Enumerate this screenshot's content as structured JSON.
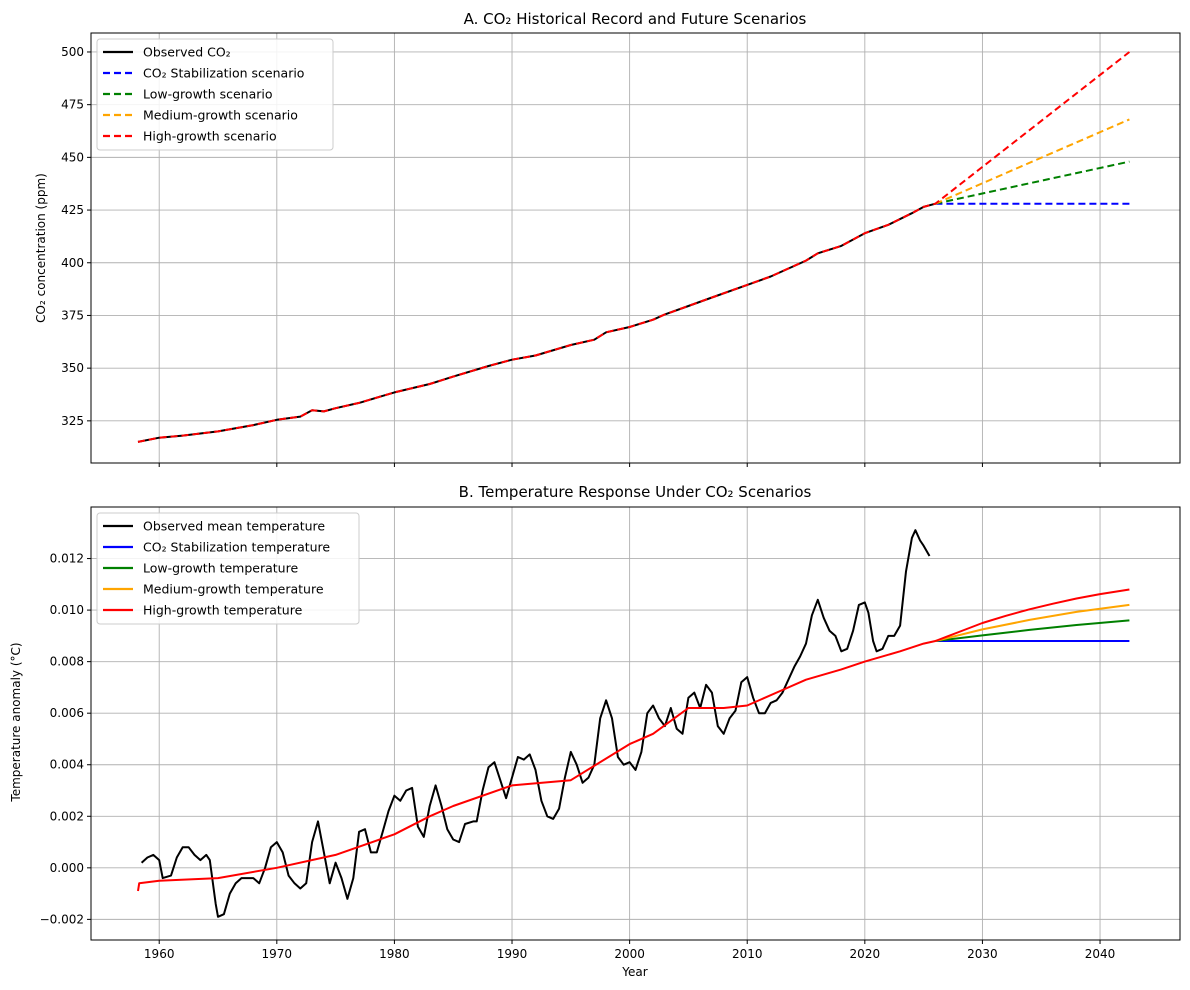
{
  "chart_data": [
    {
      "type": "line",
      "title": "A. CO₂ Historical Record and Future Scenarios",
      "xlabel": "",
      "ylabel": "CO₂ concentration (ppm)",
      "xlim": [
        1954.2,
        2046.8
      ],
      "ylim": [
        305,
        509
      ],
      "xticks": [
        1960,
        1970,
        1980,
        1990,
        2000,
        2010,
        2020,
        2030,
        2040
      ],
      "xtick_labels_visible": false,
      "yticks": [
        325,
        350,
        375,
        400,
        425,
        450,
        475,
        500
      ],
      "grid": true,
      "legend_position": "top-left",
      "series": [
        {
          "name": "Observed CO₂",
          "color": "#000000",
          "style": "solid",
          "x": [
            1958.2,
            1960,
            1962,
            1965,
            1968,
            1970,
            1972,
            1973,
            1974,
            1975,
            1977,
            1980,
            1983,
            1985,
            1988,
            1990,
            1992,
            1995,
            1997,
            1998,
            2000,
            2002,
            2003,
            2005,
            2007,
            2010,
            2012,
            2015,
            2016,
            2018,
            2020,
            2022,
            2024,
            2025,
            2026
          ],
          "y": [
            315,
            317,
            318,
            320,
            323,
            325.5,
            327,
            330,
            329.5,
            331,
            333.5,
            338.5,
            342.5,
            346,
            351,
            354,
            356,
            361,
            363.5,
            367,
            369.5,
            373,
            375.5,
            379.5,
            383.5,
            389.5,
            393.5,
            401,
            404.5,
            408,
            414,
            418,
            423.5,
            426.5,
            428
          ]
        },
        {
          "name": "CO₂ Stabilization scenario",
          "color": "#0000ff",
          "style": "dashed",
          "x": [
            2026,
            2042.5
          ],
          "y": [
            428,
            428
          ]
        },
        {
          "name": "Low-growth scenario",
          "color": "#008000",
          "style": "dashed",
          "x": [
            2026,
            2042.5
          ],
          "y": [
            428,
            448
          ]
        },
        {
          "name": "Medium-growth scenario",
          "color": "#ffa500",
          "style": "dashed",
          "x": [
            2026,
            2042.5
          ],
          "y": [
            428,
            468
          ]
        },
        {
          "name": "High-growth scenario",
          "color": "#ff0000",
          "style": "dashed",
          "x": [
            1958.2,
            1960,
            1962,
            1965,
            1968,
            1970,
            1972,
            1973,
            1974,
            1975,
            1977,
            1980,
            1983,
            1985,
            1988,
            1990,
            1992,
            1995,
            1997,
            1998,
            2000,
            2002,
            2003,
            2005,
            2007,
            2010,
            2012,
            2015,
            2016,
            2018,
            2020,
            2022,
            2024,
            2025,
            2026,
            2042.5
          ],
          "y": [
            315,
            317,
            318,
            320,
            323,
            325.5,
            327,
            330,
            329.5,
            331,
            333.5,
            338.5,
            342.5,
            346,
            351,
            354,
            356,
            361,
            363.5,
            367,
            369.5,
            373,
            375.5,
            379.5,
            383.5,
            389.5,
            393.5,
            401,
            404.5,
            408,
            414,
            418,
            423.5,
            426.5,
            428,
            500
          ]
        }
      ]
    },
    {
      "type": "line",
      "title": "B. Temperature Response Under CO₂ Scenarios",
      "xlabel": "Year",
      "ylabel": "Temperature anomaly (°C)",
      "xlim": [
        1954.2,
        2046.8
      ],
      "ylim": [
        -0.0028,
        0.014
      ],
      "xticks": [
        1960,
        1970,
        1980,
        1990,
        2000,
        2010,
        2020,
        2030,
        2040
      ],
      "yticks": [
        -0.002,
        0.0,
        0.002,
        0.004,
        0.006,
        0.008,
        0.01,
        0.012
      ],
      "ytick_labels": [
        "−0.002",
        "0.000",
        "0.002",
        "0.004",
        "0.006",
        "0.008",
        "0.010",
        "0.012"
      ],
      "grid": true,
      "legend_position": "top-left",
      "series": [
        {
          "name": "Observed mean temperature",
          "color": "#000000",
          "style": "solid",
          "x": [
            1958.5,
            1959,
            1959.5,
            1960,
            1960.3,
            1961,
            1961.5,
            1962,
            1962.5,
            1963,
            1963.5,
            1964,
            1964.3,
            1964.8,
            1965,
            1965.5,
            1966,
            1966.5,
            1967,
            1968,
            1968.5,
            1969,
            1969.5,
            1970,
            1970.5,
            1971,
            1971.5,
            1972,
            1972.5,
            1973,
            1973.5,
            1974,
            1974.5,
            1975,
            1975.5,
            1976,
            1976.5,
            1977,
            1977.5,
            1978,
            1978.5,
            1979,
            1979.5,
            1980,
            1980.5,
            1981,
            1981.5,
            1982,
            1982.5,
            1983,
            1983.5,
            1984,
            1984.5,
            1985,
            1985.5,
            1986,
            1986.7,
            1987,
            1987.5,
            1988,
            1988.5,
            1989,
            1989.5,
            1990,
            1990.5,
            1991,
            1991.5,
            1992,
            1992.5,
            1993,
            1993.5,
            1994,
            1994.5,
            1995,
            1995.5,
            1996,
            1996.5,
            1997,
            1997.5,
            1998,
            1998.5,
            1999,
            1999.5,
            2000,
            2000.5,
            2001,
            2001.5,
            2002,
            2002.5,
            2003,
            2003.5,
            2004,
            2004.5,
            2005,
            2005.5,
            2006,
            2006.5,
            2007,
            2007.5,
            2008,
            2008.5,
            2009,
            2009.5,
            2010,
            2010.5,
            2011,
            2011.5,
            2012,
            2012.5,
            2013,
            2013.5,
            2014,
            2014.5,
            2015,
            2015.5,
            2016,
            2016.5,
            2017,
            2017.5,
            2018,
            2018.5,
            2019,
            2019.5,
            2020,
            2020.3,
            2020.7,
            2021,
            2021.5,
            2022,
            2022.5,
            2023,
            2023.5,
            2024,
            2024.3,
            2024.7,
            2025,
            2025.5
          ],
          "y": [
            0.0002,
            0.0004,
            0.0005,
            0.0003,
            -0.0004,
            -0.0003,
            0.0004,
            0.0008,
            0.0008,
            0.0005,
            0.0003,
            0.0005,
            0.0003,
            -0.0014,
            -0.0019,
            -0.0018,
            -0.001,
            -0.0006,
            -0.0004,
            -0.0004,
            -0.0006,
            0.0,
            0.0008,
            0.001,
            0.0006,
            -0.0003,
            -0.0006,
            -0.0008,
            -0.0006,
            0.001,
            0.0018,
            0.0006,
            -0.0006,
            0.0002,
            -0.0004,
            -0.0012,
            -0.0004,
            0.0014,
            0.0015,
            0.0006,
            0.0006,
            0.0014,
            0.0022,
            0.0028,
            0.0026,
            0.003,
            0.0031,
            0.0016,
            0.0012,
            0.0024,
            0.0032,
            0.0024,
            0.0015,
            0.0011,
            0.001,
            0.0017,
            0.0018,
            0.0018,
            0.003,
            0.0039,
            0.0041,
            0.0034,
            0.0027,
            0.0035,
            0.0043,
            0.0042,
            0.0044,
            0.0038,
            0.0026,
            0.002,
            0.0019,
            0.0023,
            0.0035,
            0.0045,
            0.004,
            0.0033,
            0.0035,
            0.004,
            0.0058,
            0.0065,
            0.0058,
            0.0043,
            0.004,
            0.0041,
            0.0038,
            0.0045,
            0.006,
            0.0063,
            0.0058,
            0.0055,
            0.0062,
            0.0054,
            0.0052,
            0.0066,
            0.0068,
            0.0062,
            0.0071,
            0.0068,
            0.0055,
            0.0052,
            0.0058,
            0.0061,
            0.0072,
            0.0074,
            0.0066,
            0.006,
            0.006,
            0.0064,
            0.0065,
            0.0068,
            0.0073,
            0.0078,
            0.0082,
            0.0087,
            0.0098,
            0.0104,
            0.0097,
            0.0092,
            0.009,
            0.0084,
            0.0085,
            0.0092,
            0.0102,
            0.0103,
            0.0099,
            0.0088,
            0.0084,
            0.0085,
            0.009,
            0.009,
            0.0094,
            0.0115,
            0.0128,
            0.0131,
            0.0127,
            0.0125,
            0.0121
          ]
        },
        {
          "name": "CO₂ Stabilization temperature",
          "color": "#0000ff",
          "style": "solid",
          "x": [
            2026,
            2042.5
          ],
          "y": [
            0.0088,
            0.0088
          ]
        },
        {
          "name": "Low-growth temperature",
          "color": "#008000",
          "style": "solid",
          "x": [
            2026,
            2030,
            2034,
            2038,
            2042.5
          ],
          "y": [
            0.0088,
            0.00902,
            0.00923,
            0.00942,
            0.0096
          ]
        },
        {
          "name": "Medium-growth temperature",
          "color": "#ffa500",
          "style": "solid",
          "x": [
            2026,
            2030,
            2034,
            2038,
            2042.5
          ],
          "y": [
            0.0088,
            0.00925,
            0.00962,
            0.00993,
            0.0102
          ]
        },
        {
          "name": "High-growth temperature",
          "color": "#ff0000",
          "style": "solid",
          "x": [
            1958.2,
            1958.3,
            1960,
            1965,
            1970,
            1975,
            1980,
            1983,
            1985,
            1990,
            1995,
            2000,
            2002,
            2005,
            2008,
            2010,
            2013,
            2015,
            2018,
            2020,
            2023,
            2025,
            2026,
            2028,
            2030,
            2032,
            2034,
            2036,
            2038,
            2040,
            2042.5
          ],
          "y": [
            -0.0009,
            -0.0006,
            -0.0005,
            -0.0004,
            0.0,
            0.0005,
            0.0013,
            0.002,
            0.0024,
            0.0032,
            0.0034,
            0.0048,
            0.0052,
            0.0062,
            0.0062,
            0.0063,
            0.0069,
            0.0073,
            0.0077,
            0.008,
            0.0084,
            0.0087,
            0.0088,
            0.00915,
            0.0095,
            0.00978,
            0.01003,
            0.01025,
            0.01045,
            0.01062,
            0.0108
          ]
        }
      ]
    }
  ]
}
